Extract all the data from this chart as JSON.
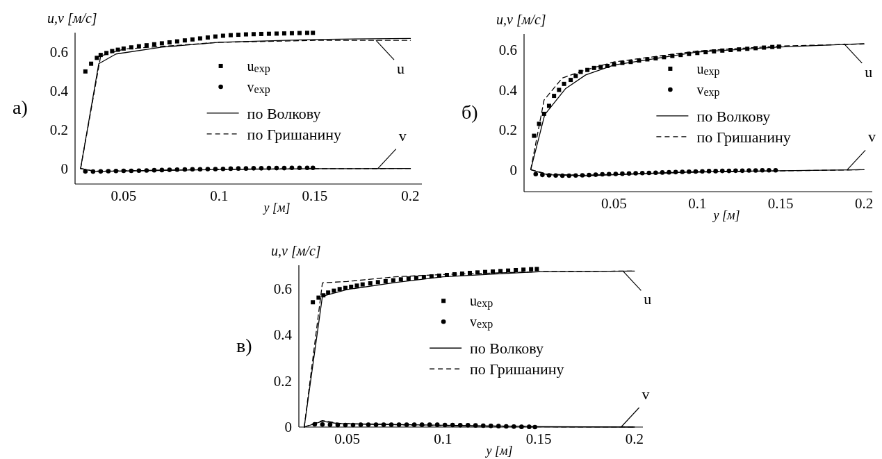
{
  "chart_data": [
    {
      "type": "line",
      "title": "а)",
      "xlabel": "y [м]",
      "ylabel": "u,v [м/с]",
      "xlim": [
        0.0246,
        0.206
      ],
      "ylim": [
        -0.08,
        0.7
      ],
      "xticks": [
        0.05,
        0.1,
        0.15,
        0.2
      ],
      "yticks": [
        0,
        0.2,
        0.4,
        0.6
      ],
      "legend": "right",
      "grid": false,
      "annotations": [
        {
          "text": "u",
          "x": 0.182,
          "y": 0.66
        },
        {
          "text": "v",
          "x": 0.183,
          "y": 0
        }
      ],
      "series": [
        {
          "name": "u$_{exp}$",
          "type": "scatter",
          "marker": "square",
          "color": "#000000",
          "x": [
            0.03,
            0.033,
            0.036,
            0.038,
            0.041,
            0.044,
            0.047,
            0.05,
            0.054,
            0.058,
            0.062,
            0.066,
            0.07,
            0.074,
            0.078,
            0.082,
            0.086,
            0.09,
            0.094,
            0.098,
            0.102,
            0.106,
            0.11,
            0.114,
            0.118,
            0.122,
            0.126,
            0.13,
            0.134,
            0.138,
            0.142,
            0.146,
            0.149
          ],
          "values": [
            0.5,
            0.54,
            0.57,
            0.585,
            0.595,
            0.605,
            0.612,
            0.618,
            0.624,
            0.63,
            0.635,
            0.64,
            0.645,
            0.65,
            0.655,
            0.66,
            0.665,
            0.67,
            0.675,
            0.68,
            0.684,
            0.687,
            0.689,
            0.691,
            0.692,
            0.693,
            0.694,
            0.695,
            0.696,
            0.697,
            0.698,
            0.699,
            0.699
          ]
        },
        {
          "name": "v$_{exp}$",
          "type": "scatter",
          "marker": "circle",
          "color": "#000000",
          "x": [
            0.03,
            0.034,
            0.038,
            0.042,
            0.046,
            0.05,
            0.054,
            0.058,
            0.062,
            0.066,
            0.07,
            0.074,
            0.078,
            0.082,
            0.086,
            0.09,
            0.094,
            0.098,
            0.102,
            0.106,
            0.11,
            0.114,
            0.118,
            0.122,
            0.126,
            0.13,
            0.134,
            0.138,
            0.142,
            0.146,
            0.149
          ],
          "values": [
            -0.015,
            -0.016,
            -0.015,
            -0.014,
            -0.013,
            -0.012,
            -0.012,
            -0.011,
            -0.01,
            -0.009,
            -0.008,
            -0.007,
            -0.006,
            -0.005,
            -0.004,
            -0.004,
            -0.003,
            -0.003,
            -0.002,
            -0.001,
            0,
            0,
            0.001,
            0.001,
            0.002,
            0.002,
            0.002,
            0.003,
            0.003,
            0.003,
            0.003
          ]
        },
        {
          "name": "по Волкову",
          "type": "line",
          "line_style": "solid",
          "color": "#000000",
          "x": [
            0.0275,
            0.037,
            0.046,
            0.07,
            0.1,
            0.15,
            0.2
          ],
          "values": [
            0,
            0.54,
            0.59,
            0.625,
            0.65,
            0.665,
            0.67
          ]
        },
        {
          "name": "по Гришанину",
          "type": "line",
          "line_style": "dashed",
          "color": "#000000",
          "x": [
            0.0275,
            0.038,
            0.05,
            0.1,
            0.15,
            0.2
          ],
          "values": [
            0,
            0.58,
            0.615,
            0.65,
            0.66,
            0.66
          ]
        },
        {
          "type": "line",
          "line_style": "solid",
          "color": "#000000",
          "x": [
            0.0275,
            0.035,
            0.05,
            0.1,
            0.15,
            0.2
          ],
          "values": [
            0,
            -0.015,
            -0.013,
            -0.005,
            -0.001,
            0
          ]
        },
        {
          "type": "line",
          "line_style": "dashed",
          "color": "#000000",
          "x": [
            0.0275,
            0.035,
            0.05,
            0.1,
            0.15,
            0.2
          ],
          "values": [
            0,
            -0.014,
            -0.012,
            -0.004,
            -0.001,
            0
          ]
        }
      ]
    },
    {
      "type": "line",
      "title": "б)",
      "xlabel": "y [м]",
      "ylabel": "u,v [м/с]",
      "xlim": [
        -0.004,
        0.205
      ],
      "ylim": [
        -0.11,
        0.68
      ],
      "xticks": [
        0.05,
        0.1,
        0.15,
        0.2
      ],
      "yticks": [
        0,
        0.2,
        0.4,
        0.6
      ],
      "legend": "right",
      "grid": false,
      "annotations": [
        {
          "text": "u",
          "x": 0.188,
          "y": 0.632
        },
        {
          "text": "v",
          "x": 0.19,
          "y": 0
        }
      ],
      "series": [
        {
          "name": "u$_{exp}$",
          "type": "scatter",
          "marker": "square",
          "color": "#000000",
          "x": [
            0.002,
            0.005,
            0.008,
            0.011,
            0.014,
            0.017,
            0.02,
            0.024,
            0.027,
            0.03,
            0.034,
            0.038,
            0.042,
            0.046,
            0.05,
            0.055,
            0.06,
            0.065,
            0.07,
            0.075,
            0.08,
            0.085,
            0.09,
            0.095,
            0.1,
            0.105,
            0.11,
            0.115,
            0.12,
            0.125,
            0.13,
            0.135,
            0.14,
            0.145,
            0.149
          ],
          "values": [
            0.17,
            0.23,
            0.28,
            0.32,
            0.37,
            0.4,
            0.43,
            0.45,
            0.47,
            0.49,
            0.5,
            0.51,
            0.515,
            0.52,
            0.528,
            0.535,
            0.54,
            0.547,
            0.553,
            0.558,
            0.564,
            0.57,
            0.575,
            0.58,
            0.585,
            0.589,
            0.593,
            0.597,
            0.6,
            0.603,
            0.606,
            0.609,
            0.612,
            0.615,
            0.617
          ]
        },
        {
          "name": "v$_{exp}$",
          "type": "scatter",
          "marker": "circle",
          "color": "#000000",
          "x": [
            0.003,
            0.007,
            0.011,
            0.015,
            0.019,
            0.023,
            0.027,
            0.031,
            0.035,
            0.039,
            0.043,
            0.047,
            0.051,
            0.055,
            0.059,
            0.063,
            0.067,
            0.071,
            0.075,
            0.079,
            0.083,
            0.087,
            0.091,
            0.095,
            0.099,
            0.103,
            0.107,
            0.111,
            0.115,
            0.119,
            0.123,
            0.127,
            0.131,
            0.135,
            0.139,
            0.143,
            0.147
          ],
          "values": [
            -0.022,
            -0.026,
            -0.028,
            -0.029,
            -0.03,
            -0.03,
            -0.029,
            -0.028,
            -0.027,
            -0.025,
            -0.023,
            -0.022,
            -0.021,
            -0.02,
            -0.019,
            -0.018,
            -0.017,
            -0.016,
            -0.015,
            -0.014,
            -0.013,
            -0.012,
            -0.011,
            -0.01,
            -0.009,
            -0.008,
            -0.007,
            -0.007,
            -0.006,
            -0.006,
            -0.005,
            -0.005,
            -0.004,
            -0.004,
            -0.003,
            -0.003,
            -0.003
          ]
        },
        {
          "name": "по Волкову",
          "type": "line",
          "line_style": "solid",
          "color": "#000000",
          "x": [
            0,
            0.0084,
            0.021,
            0.033,
            0.05,
            0.1,
            0.15,
            0.2
          ],
          "values": [
            0,
            0.276,
            0.407,
            0.475,
            0.525,
            0.59,
            0.615,
            0.632
          ]
        },
        {
          "name": "по Гришанину",
          "type": "line",
          "line_style": "dashed",
          "color": "#000000",
          "x": [
            0,
            0.008,
            0.019,
            0.033,
            0.05,
            0.1,
            0.15,
            0.2
          ],
          "values": [
            0,
            0.349,
            0.46,
            0.5,
            0.54,
            0.595,
            0.62,
            0.63
          ]
        },
        {
          "type": "line",
          "line_style": "solid",
          "color": "#000000",
          "x": [
            0,
            0.01,
            0.033,
            0.1,
            0.15,
            0.2
          ],
          "values": [
            0,
            -0.025,
            -0.03,
            -0.01,
            -0.005,
            0
          ]
        },
        {
          "type": "line",
          "line_style": "dashed",
          "color": "#000000",
          "x": [
            0,
            0.01,
            0.03,
            0.1,
            0.15,
            0.2
          ],
          "values": [
            0,
            -0.022,
            -0.028,
            -0.012,
            -0.006,
            0
          ]
        }
      ]
    },
    {
      "type": "line",
      "title": "в)",
      "xlabel": "y [м]",
      "ylabel": "u,v [м/с]",
      "xlim": [
        0.0247,
        0.2044
      ],
      "ylim": [
        0,
        0.7
      ],
      "xticks": [
        0.05,
        0.1,
        0.15,
        0.2
      ],
      "yticks": [
        0,
        0.2,
        0.4,
        0.6
      ],
      "legend": "right",
      "grid": false,
      "annotations": [
        {
          "text": "u",
          "x": 0.194,
          "y": 0.675
        },
        {
          "text": "v",
          "x": 0.193,
          "y": 0
        }
      ],
      "series": [
        {
          "name": "u$_{exp}$",
          "type": "scatter",
          "marker": "square",
          "color": "#000000",
          "x": [
            0.032,
            0.035,
            0.0375,
            0.04,
            0.043,
            0.046,
            0.049,
            0.052,
            0.055,
            0.058,
            0.062,
            0.066,
            0.07,
            0.074,
            0.078,
            0.082,
            0.086,
            0.09,
            0.094,
            0.098,
            0.102,
            0.106,
            0.11,
            0.114,
            0.118,
            0.122,
            0.126,
            0.13,
            0.134,
            0.138,
            0.142,
            0.146,
            0.149
          ],
          "values": [
            0.54,
            0.56,
            0.57,
            0.582,
            0.59,
            0.597,
            0.602,
            0.607,
            0.612,
            0.617,
            0.622,
            0.627,
            0.631,
            0.635,
            0.639,
            0.643,
            0.646,
            0.649,
            0.652,
            0.655,
            0.658,
            0.661,
            0.664,
            0.667,
            0.669,
            0.671,
            0.673,
            0.675,
            0.677,
            0.679,
            0.681,
            0.683,
            0.684
          ]
        },
        {
          "name": "v$_{exp}$",
          "type": "scatter",
          "marker": "circle",
          "color": "#000000",
          "x": [
            0.033,
            0.037,
            0.041,
            0.045,
            0.049,
            0.053,
            0.057,
            0.061,
            0.065,
            0.069,
            0.073,
            0.077,
            0.081,
            0.085,
            0.089,
            0.093,
            0.097,
            0.101,
            0.105,
            0.109,
            0.113,
            0.117,
            0.121,
            0.125,
            0.129,
            0.133,
            0.137,
            0.141,
            0.145,
            0.148
          ],
          "values": [
            0.012,
            0.011,
            0.01,
            0.009,
            0.009,
            0.009,
            0.01,
            0.01,
            0.01,
            0.01,
            0.01,
            0.01,
            0.01,
            0.01,
            0.01,
            0.01,
            0.01,
            0.009,
            0.009,
            0.008,
            0.008,
            0.007,
            0.006,
            0.005,
            0.004,
            0.003,
            0.002,
            0.001,
            0.001,
            0.0
          ]
        },
        {
          "name": "по Волкову",
          "type": "line",
          "line_style": "solid",
          "color": "#000000",
          "x": [
            0.0275,
            0.037,
            0.05,
            0.075,
            0.1,
            0.15,
            0.2
          ],
          "values": [
            0,
            0.566,
            0.595,
            0.625,
            0.65,
            0.672,
            0.675
          ]
        },
        {
          "name": "по Гришанину",
          "type": "line",
          "line_style": "dashed",
          "color": "#000000",
          "x": [
            0.0275,
            0.037,
            0.05,
            0.075,
            0.1,
            0.15,
            0.2
          ],
          "values": [
            0,
            0.624,
            0.63,
            0.65,
            0.66,
            0.672,
            0.675
          ]
        },
        {
          "type": "line",
          "line_style": "solid",
          "color": "#000000",
          "x": [
            0.0275,
            0.037,
            0.045,
            0.1,
            0.15,
            0.2
          ],
          "values": [
            0,
            0.025,
            0.015,
            0.008,
            0.002,
            0
          ]
        },
        {
          "type": "line",
          "line_style": "dashed",
          "color": "#000000",
          "x": [
            0.0275,
            0.037,
            0.047,
            0.1,
            0.15,
            0.2
          ],
          "values": [
            0,
            0.028,
            0.015,
            0.006,
            0.001,
            0
          ]
        }
      ]
    }
  ]
}
